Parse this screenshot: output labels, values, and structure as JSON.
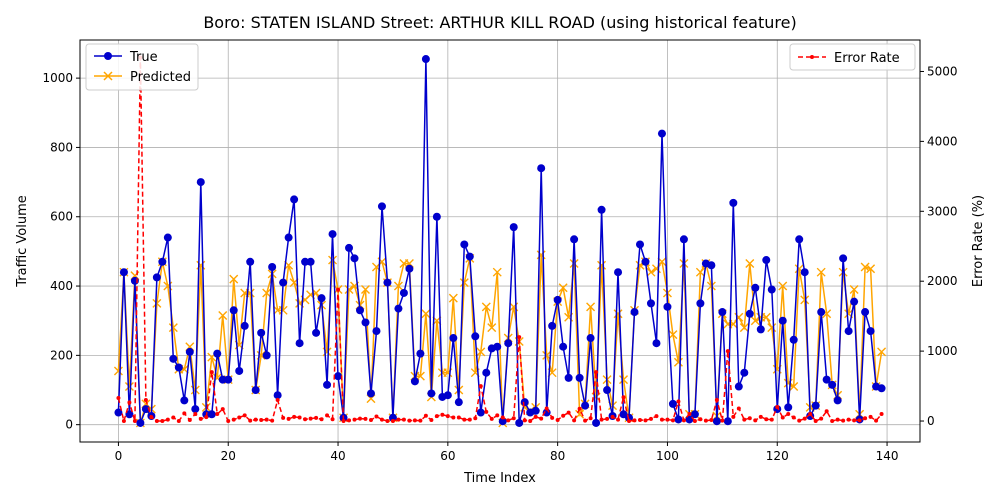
{
  "chart_data": {
    "type": "line",
    "title": "Boro: STATEN ISLAND Street: ARTHUR KILL ROAD (using historical feature)",
    "xlabel": "Time Index",
    "ylabel": "Traffic Volume",
    "y2label": "Error Rate (%)",
    "xlim": [
      -7,
      146
    ],
    "ylim": [
      -50,
      1110
    ],
    "y2lim": [
      -300,
      5450
    ],
    "xticks": [
      0,
      20,
      40,
      60,
      80,
      100,
      120,
      140
    ],
    "yticks": [
      0,
      200,
      400,
      600,
      800,
      1000
    ],
    "y2ticks": [
      0,
      1000,
      2000,
      3000,
      4000,
      5000
    ],
    "grid": true,
    "legend_left": "top-left",
    "legend_right": "top-right",
    "colors": {
      "true": "#0000cc",
      "predicted": "#ffa500",
      "error": "#ff0000"
    },
    "series": [
      {
        "name": "True",
        "axis": "left",
        "marker": "circle",
        "values": [
          35,
          440,
          30,
          415,
          5,
          45,
          25,
          425,
          470,
          540,
          190,
          165,
          70,
          210,
          45,
          700,
          30,
          30,
          205,
          130,
          130,
          330,
          155,
          285,
          470,
          100,
          265,
          200,
          455,
          85,
          410,
          540,
          650,
          235,
          470,
          470,
          265,
          365,
          115,
          550,
          140,
          20,
          510,
          480,
          330,
          295,
          90,
          270,
          630,
          410,
          20,
          335,
          380,
          450,
          125,
          205,
          1055,
          90,
          600,
          80,
          85,
          250,
          65,
          520,
          485,
          255,
          35,
          150,
          220,
          225,
          10,
          235,
          570,
          5,
          65,
          35,
          40,
          740,
          35,
          285,
          360,
          225,
          135,
          535,
          135,
          55,
          250,
          5,
          620,
          100,
          25,
          440,
          30,
          20,
          325,
          520,
          470,
          350,
          235,
          840,
          340,
          60,
          15,
          535,
          15,
          30,
          350,
          465,
          460,
          10,
          325,
          10,
          640,
          110,
          150,
          320,
          395,
          275,
          475,
          390,
          45,
          300,
          50,
          245,
          535,
          440,
          25,
          55,
          325,
          130,
          115,
          70,
          480,
          270,
          355,
          15,
          325,
          270,
          110,
          105
        ]
      },
      {
        "name": "Predicted",
        "axis": "left",
        "marker": "x",
        "values": [
          155,
          440,
          110,
          430,
          5,
          60,
          45,
          350,
          470,
          400,
          280,
          160,
          160,
          225,
          100,
          460,
          50,
          195,
          135,
          315,
          130,
          420,
          230,
          380,
          380,
          100,
          200,
          380,
          435,
          330,
          330,
          460,
          410,
          350,
          360,
          375,
          380,
          345,
          210,
          475,
          390,
          20,
          390,
          400,
          345,
          390,
          75,
          455,
          470,
          410,
          20,
          400,
          465,
          465,
          140,
          140,
          320,
          80,
          300,
          150,
          150,
          365,
          100,
          410,
          480,
          150,
          210,
          340,
          280,
          440,
          5,
          250,
          340,
          240,
          50,
          40,
          50,
          490,
          200,
          150,
          355,
          395,
          310,
          465,
          30,
          60,
          340,
          80,
          460,
          130,
          55,
          320,
          130,
          20,
          330,
          460,
          470,
          440,
          450,
          470,
          380,
          260,
          180,
          465,
          30,
          30,
          440,
          465,
          400,
          25,
          320,
          290,
          290,
          310,
          280,
          465,
          300,
          310,
          310,
          280,
          160,
          400,
          120,
          110,
          450,
          360,
          50,
          55,
          440,
          320,
          115,
          85,
          440,
          320,
          390,
          30,
          455,
          450,
          110,
          210
        ]
      },
      {
        "name": "Error Rate",
        "axis": "right",
        "marker": "point",
        "values": [
          330,
          0,
          265,
          0,
          5200,
          300,
          55,
          0,
          0,
          20,
          50,
          0,
          110,
          15,
          100,
          30,
          55,
          700,
          100,
          170,
          0,
          20,
          50,
          80,
          5,
          20,
          15,
          20,
          5,
          300,
          45,
          30,
          60,
          50,
          25,
          35,
          45,
          25,
          80,
          25,
          1880,
          0,
          10,
          20,
          35,
          30,
          15,
          65,
          20,
          0,
          0,
          20,
          20,
          5,
          10,
          5,
          75,
          15,
          70,
          90,
          70,
          50,
          50,
          20,
          20,
          40,
          500,
          130,
          30,
          80,
          50,
          10,
          40,
          1200,
          10,
          0,
          60,
          35,
          180,
          45,
          15,
          75,
          120,
          10,
          175,
          5,
          40,
          700,
          20,
          30,
          60,
          20,
          340,
          0,
          10,
          15,
          10,
          30,
          70,
          20,
          20,
          10,
          280,
          10,
          100,
          0,
          25,
          5,
          15,
          300,
          5,
          1000,
          60,
          180,
          20,
          40,
          10,
          60,
          25,
          20,
          200,
          50,
          100,
          50,
          5,
          35,
          100,
          0,
          35,
          140,
          0,
          20,
          5,
          20,
          10,
          10,
          40,
          60,
          5,
          100
        ]
      }
    ]
  }
}
